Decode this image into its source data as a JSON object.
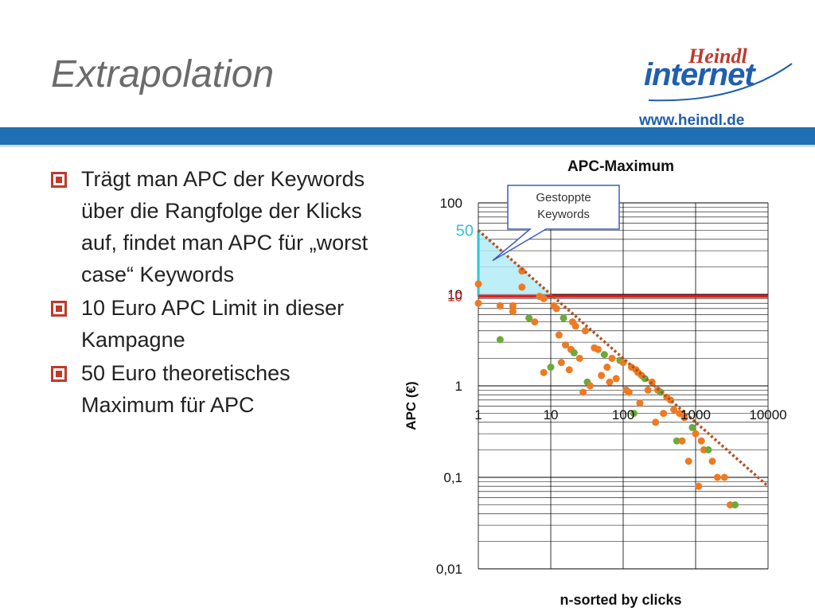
{
  "slide": {
    "title": "Extrapolation",
    "logo": {
      "top": "Heindl",
      "bottom": "internet"
    },
    "url": "www.heindl.de",
    "bullets": [
      "Trägt man APC der Keywords über die Rangfolge der Klicks auf, findet man APC für „worst case“ Keywords",
      "10 Euro APC Limit in dieser Kampagne",
      "50 Euro theoretisches Maximum für APC"
    ],
    "colors": {
      "title": "#6b6b6b",
      "band": "#1f6fb5",
      "bullet": "#c0392b",
      "brand": "#1f5fae"
    }
  },
  "chart_data": {
    "type": "scatter",
    "title": "APC-Maximum",
    "xlabel": "n-sorted by clicks",
    "ylabel": "APC (€)",
    "x_scale": "log",
    "y_scale": "log",
    "xlim": [
      1,
      10000
    ],
    "ylim": [
      0.01,
      100
    ],
    "x_ticks": [
      "1",
      "10",
      "100",
      "1000",
      "10000"
    ],
    "y_ticks": [
      "100",
      "10",
      "1",
      "0,1",
      "0,01"
    ],
    "grid": true,
    "annotations": {
      "limit_label": "10",
      "max_label": "50",
      "callout": [
        "Gestoppte",
        "Keywords"
      ]
    },
    "limit_line": {
      "y": 9.5,
      "color": "#e02020"
    },
    "max_value": 50,
    "trend_line": {
      "x": [
        1,
        10000
      ],
      "y": [
        50,
        0.08
      ],
      "color": "#b4501e"
    },
    "colors": {
      "points": "#ee7a22",
      "points_alt": "#6aaa3c",
      "fill": "#aeeaf5",
      "axis_label_max": "#33c3d6"
    },
    "points": [
      [
        1,
        13
      ],
      [
        1,
        8
      ],
      [
        2,
        7.5
      ],
      [
        2,
        3.2
      ],
      [
        3,
        7.5
      ],
      [
        3,
        6.5
      ],
      [
        4,
        18
      ],
      [
        4,
        12
      ],
      [
        5,
        5.5
      ],
      [
        6,
        5
      ],
      [
        7,
        9.5
      ],
      [
        8,
        9
      ],
      [
        8,
        1.4
      ],
      [
        10,
        1.6
      ],
      [
        11,
        7.5
      ],
      [
        12,
        7
      ],
      [
        13,
        3.6
      ],
      [
        14,
        1.8
      ],
      [
        15,
        5.5
      ],
      [
        16,
        2.8
      ],
      [
        18,
        1.5
      ],
      [
        19,
        2.5
      ],
      [
        20,
        5
      ],
      [
        21,
        2.3
      ],
      [
        22,
        4.5
      ],
      [
        25,
        2
      ],
      [
        28,
        0.85
      ],
      [
        30,
        4
      ],
      [
        32,
        1.1
      ],
      [
        35,
        1
      ],
      [
        40,
        2.6
      ],
      [
        45,
        2.5
      ],
      [
        50,
        1.3
      ],
      [
        55,
        2.2
      ],
      [
        60,
        1.6
      ],
      [
        65,
        1.1
      ],
      [
        70,
        2
      ],
      [
        80,
        1.2
      ],
      [
        90,
        1.9
      ],
      [
        100,
        1.8
      ],
      [
        110,
        0.9
      ],
      [
        120,
        0.85
      ],
      [
        130,
        1.6
      ],
      [
        140,
        0.5
      ],
      [
        150,
        1.5
      ],
      [
        160,
        1.4
      ],
      [
        170,
        0.65
      ],
      [
        180,
        1.3
      ],
      [
        200,
        1.2
      ],
      [
        220,
        0.9
      ],
      [
        250,
        1.1
      ],
      [
        280,
        0.4
      ],
      [
        300,
        0.9
      ],
      [
        330,
        0.85
      ],
      [
        360,
        0.5
      ],
      [
        400,
        0.75
      ],
      [
        450,
        0.7
      ],
      [
        500,
        0.55
      ],
      [
        550,
        0.25
      ],
      [
        600,
        0.5
      ],
      [
        650,
        0.25
      ],
      [
        700,
        0.45
      ],
      [
        800,
        0.15
      ],
      [
        900,
        0.35
      ],
      [
        1000,
        0.3
      ],
      [
        1100,
        0.08
      ],
      [
        1200,
        0.25
      ],
      [
        1300,
        0.2
      ],
      [
        1500,
        0.2
      ],
      [
        1700,
        0.15
      ],
      [
        2000,
        0.1
      ],
      [
        2500,
        0.1
      ],
      [
        3000,
        0.05
      ],
      [
        3500,
        0.05
      ]
    ]
  }
}
